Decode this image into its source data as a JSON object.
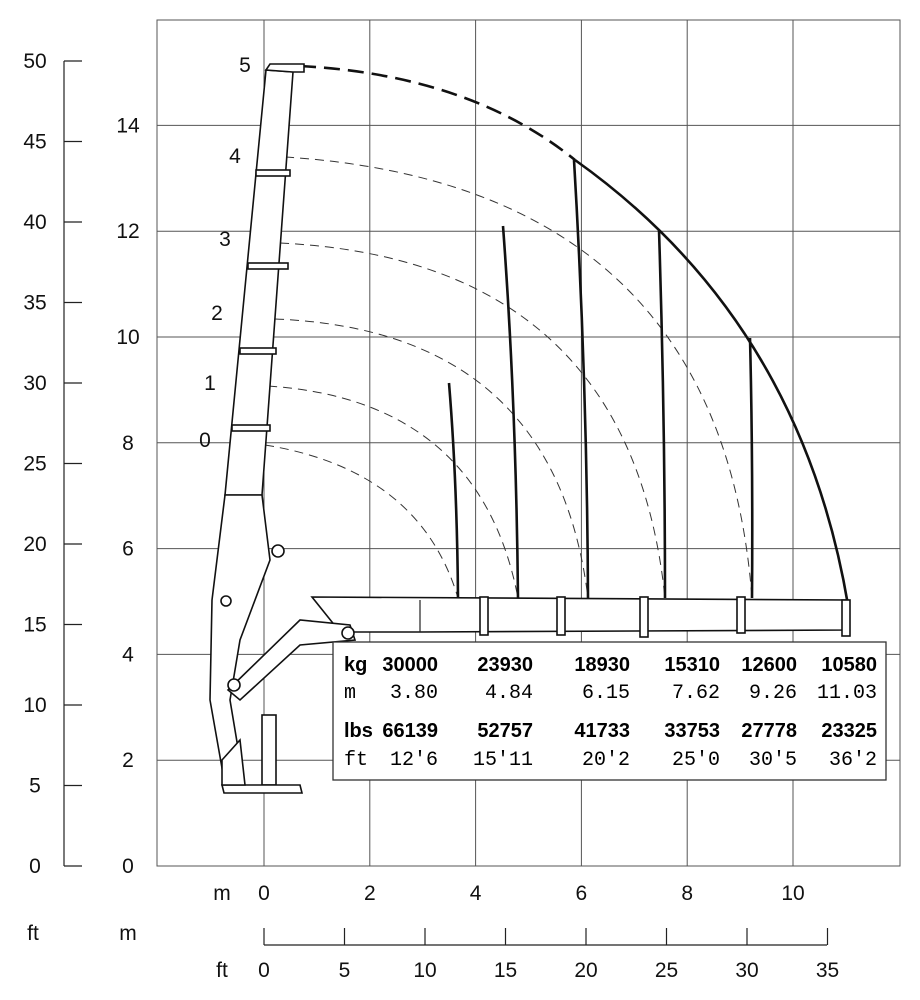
{
  "axes": {
    "left_ft_ticks": [
      "0",
      "5",
      "10",
      "15",
      "20",
      "25",
      "30",
      "35",
      "40",
      "45",
      "50"
    ],
    "left_m_ticks": [
      "0",
      "2",
      "4",
      "6",
      "8",
      "10",
      "12",
      "14"
    ],
    "bottom_m_ticks": [
      "0",
      "2",
      "4",
      "6",
      "8",
      "10"
    ],
    "bottom_ft_ticks": [
      "0",
      "5",
      "10",
      "15",
      "20",
      "25",
      "30",
      "35"
    ],
    "unit_m_bottom": "m",
    "unit_ft_left": "ft",
    "unit_m_left": "m",
    "unit_ft_bottom": "ft"
  },
  "boom_sections": [
    "0",
    "1",
    "2",
    "3",
    "4",
    "5"
  ],
  "load_table": {
    "kg_label": "kg",
    "kg": [
      "30000",
      "23930",
      "18930",
      "15310",
      "12600",
      "10580"
    ],
    "m_label": "m",
    "m": [
      "3.80",
      "4.84",
      "6.15",
      "7.62",
      "9.26",
      "11.03"
    ],
    "lbs_label": "lbs",
    "lbs": [
      "66139",
      "52757",
      "41733",
      "33753",
      "27778",
      "23325"
    ],
    "ft_label": "ft",
    "ft": [
      "12'6",
      "15'11",
      "20'2",
      "25'0",
      "30'5",
      "36'2"
    ]
  }
}
